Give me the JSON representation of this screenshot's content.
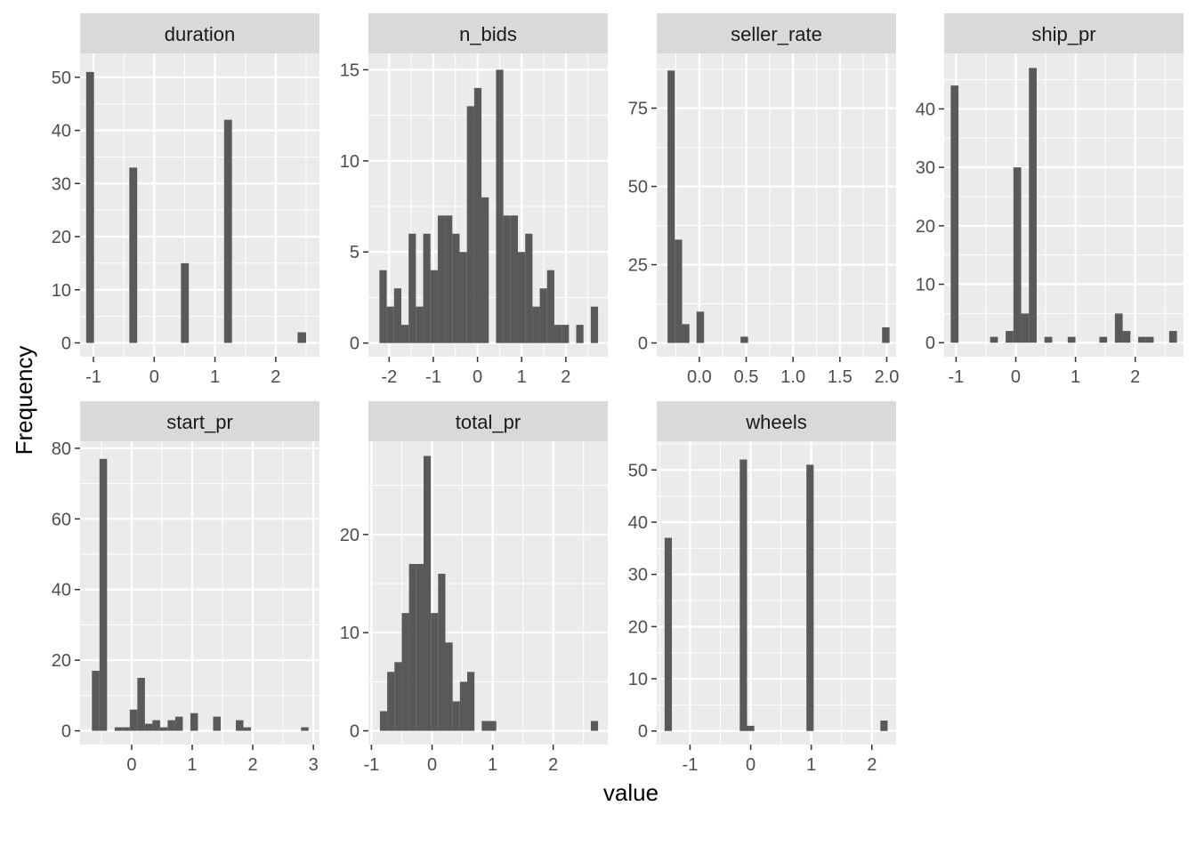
{
  "chart_data": {
    "type": "bar",
    "xlabel": "value",
    "ylabel": "Frequency",
    "title": "",
    "grid": true,
    "bar_color": "#595959",
    "panel_background": "#ebebeb",
    "strip_background": "#d9d9d9",
    "facets": [
      {
        "name": "duration",
        "xlim": [
          -1.22,
          2.72
        ],
        "ylim": [
          -2.6,
          54.5
        ],
        "xticks": [
          -1,
          0,
          1,
          2
        ],
        "xtick_labels": [
          "-1",
          "0",
          "1",
          "2"
        ],
        "yticks": [
          0,
          10,
          20,
          30,
          40,
          50
        ],
        "ytick_labels": [
          "0",
          "10",
          "20",
          "30",
          "40",
          "50"
        ],
        "bins": [
          {
            "x0": -1.12,
            "x1": -0.99,
            "count": 51
          },
          {
            "x0": -0.41,
            "x1": -0.28,
            "count": 33
          },
          {
            "x0": 0.44,
            "x1": 0.57,
            "count": 15
          },
          {
            "x0": 1.15,
            "x1": 1.28,
            "count": 42
          },
          {
            "x0": 2.36,
            "x1": 2.5,
            "count": 2
          }
        ]
      },
      {
        "name": "n_bids",
        "xlim": [
          -2.47,
          2.95
        ],
        "ylim": [
          -0.75,
          15.9
        ],
        "xticks": [
          -2,
          -1,
          0,
          1,
          2
        ],
        "xtick_labels": [
          "-2",
          "-1",
          "0",
          "1",
          "2"
        ],
        "yticks": [
          0,
          5,
          10,
          15
        ],
        "ytick_labels": [
          "0",
          "5",
          "10",
          "15"
        ],
        "bins": [
          {
            "x0": -2.22,
            "x1": -2.055,
            "count": 4
          },
          {
            "x0": -2.055,
            "x1": -1.89,
            "count": 2
          },
          {
            "x0": -1.89,
            "x1": -1.725,
            "count": 3
          },
          {
            "x0": -1.725,
            "x1": -1.56,
            "count": 1
          },
          {
            "x0": -1.56,
            "x1": -1.395,
            "count": 6
          },
          {
            "x0": -1.395,
            "x1": -1.23,
            "count": 2
          },
          {
            "x0": -1.23,
            "x1": -1.065,
            "count": 6
          },
          {
            "x0": -1.065,
            "x1": -0.9,
            "count": 4
          },
          {
            "x0": -0.9,
            "x1": -0.735,
            "count": 7
          },
          {
            "x0": -0.735,
            "x1": -0.57,
            "count": 7
          },
          {
            "x0": -0.57,
            "x1": -0.405,
            "count": 6
          },
          {
            "x0": -0.405,
            "x1": -0.24,
            "count": 5
          },
          {
            "x0": -0.24,
            "x1": -0.075,
            "count": 13
          },
          {
            "x0": -0.075,
            "x1": 0.09,
            "count": 14
          },
          {
            "x0": 0.09,
            "x1": 0.255,
            "count": 8
          },
          {
            "x0": 0.42,
            "x1": 0.585,
            "count": 15
          },
          {
            "x0": 0.585,
            "x1": 0.75,
            "count": 7
          },
          {
            "x0": 0.75,
            "x1": 0.915,
            "count": 7
          },
          {
            "x0": 0.915,
            "x1": 1.08,
            "count": 5
          },
          {
            "x0": 1.08,
            "x1": 1.245,
            "count": 6
          },
          {
            "x0": 1.245,
            "x1": 1.41,
            "count": 2
          },
          {
            "x0": 1.41,
            "x1": 1.575,
            "count": 3
          },
          {
            "x0": 1.575,
            "x1": 1.74,
            "count": 4
          },
          {
            "x0": 1.74,
            "x1": 1.905,
            "count": 1
          },
          {
            "x0": 1.905,
            "x1": 2.07,
            "count": 1
          },
          {
            "x0": 2.235,
            "x1": 2.4,
            "count": 1
          },
          {
            "x0": 2.565,
            "x1": 2.73,
            "count": 2
          }
        ]
      },
      {
        "name": "seller_rate",
        "xlim": [
          -0.455,
          2.1
        ],
        "ylim": [
          -4.4,
          92.5
        ],
        "xticks": [
          0.0,
          0.5,
          1.0,
          1.5,
          2.0
        ],
        "xtick_labels": [
          "0.0",
          "0.5",
          "1.0",
          "1.5",
          "2.0"
        ],
        "yticks": [
          0,
          25,
          50,
          75
        ],
        "ytick_labels": [
          "0",
          "25",
          "50",
          "75"
        ],
        "bins": [
          {
            "x0": -0.34,
            "x1": -0.262,
            "count": 87
          },
          {
            "x0": -0.262,
            "x1": -0.184,
            "count": 33
          },
          {
            "x0": -0.184,
            "x1": -0.106,
            "count": 6
          },
          {
            "x0": -0.03,
            "x1": 0.05,
            "count": 10
          },
          {
            "x0": 0.44,
            "x1": 0.52,
            "count": 2
          },
          {
            "x0": 1.95,
            "x1": 2.03,
            "count": 5
          }
        ]
      },
      {
        "name": "ship_pr",
        "xlim": [
          -1.2,
          2.81
        ],
        "ylim": [
          -2.4,
          49.5
        ],
        "xticks": [
          -1,
          0,
          1,
          2
        ],
        "xtick_labels": [
          "-1",
          "0",
          "1",
          "2"
        ],
        "yticks": [
          0,
          10,
          20,
          30,
          40
        ],
        "ytick_labels": [
          "0",
          "10",
          "20",
          "30",
          "40"
        ],
        "bins": [
          {
            "x0": -1.09,
            "x1": -0.96,
            "count": 44
          },
          {
            "x0": -0.43,
            "x1": -0.3,
            "count": 1
          },
          {
            "x0": -0.17,
            "x1": -0.04,
            "count": 2
          },
          {
            "x0": -0.04,
            "x1": 0.09,
            "count": 30
          },
          {
            "x0": 0.09,
            "x1": 0.22,
            "count": 5
          },
          {
            "x0": 0.22,
            "x1": 0.35,
            "count": 47
          },
          {
            "x0": 0.48,
            "x1": 0.61,
            "count": 1
          },
          {
            "x0": 0.87,
            "x1": 1.0,
            "count": 1
          },
          {
            "x0": 1.4,
            "x1": 1.53,
            "count": 1
          },
          {
            "x0": 1.66,
            "x1": 1.79,
            "count": 5
          },
          {
            "x0": 1.79,
            "x1": 1.92,
            "count": 2
          },
          {
            "x0": 2.05,
            "x1": 2.18,
            "count": 1
          },
          {
            "x0": 2.18,
            "x1": 2.31,
            "count": 1
          },
          {
            "x0": 2.57,
            "x1": 2.7,
            "count": 2
          }
        ]
      },
      {
        "name": "start_pr",
        "xlim": [
          -0.85,
          3.1
        ],
        "ylim": [
          -3.9,
          82
        ],
        "xticks": [
          0,
          1,
          2,
          3
        ],
        "xtick_labels": [
          "0",
          "1",
          "2",
          "3"
        ],
        "yticks": [
          0,
          20,
          40,
          60,
          80
        ],
        "ytick_labels": [
          "0",
          "20",
          "40",
          "60",
          "80"
        ],
        "bins": [
          {
            "x0": -0.655,
            "x1": -0.53,
            "count": 17
          },
          {
            "x0": -0.53,
            "x1": -0.405,
            "count": 77
          },
          {
            "x0": -0.28,
            "x1": -0.155,
            "count": 1
          },
          {
            "x0": -0.155,
            "x1": -0.03,
            "count": 1
          },
          {
            "x0": -0.03,
            "x1": 0.095,
            "count": 6
          },
          {
            "x0": 0.095,
            "x1": 0.22,
            "count": 15
          },
          {
            "x0": 0.22,
            "x1": 0.345,
            "count": 2
          },
          {
            "x0": 0.345,
            "x1": 0.47,
            "count": 3
          },
          {
            "x0": 0.47,
            "x1": 0.595,
            "count": 1
          },
          {
            "x0": 0.595,
            "x1": 0.72,
            "count": 3
          },
          {
            "x0": 0.72,
            "x1": 0.845,
            "count": 4
          },
          {
            "x0": 0.97,
            "x1": 1.095,
            "count": 5
          },
          {
            "x0": 1.345,
            "x1": 1.47,
            "count": 4
          },
          {
            "x0": 1.72,
            "x1": 1.845,
            "count": 3
          },
          {
            "x0": 1.845,
            "x1": 1.97,
            "count": 1
          },
          {
            "x0": 2.795,
            "x1": 2.92,
            "count": 1
          }
        ]
      },
      {
        "name": "total_pr",
        "xlim": [
          -1.05,
          2.9
        ],
        "ylim": [
          -1.4,
          29.5
        ],
        "xticks": [
          -1,
          0,
          1,
          2
        ],
        "xtick_labels": [
          "-1",
          "0",
          "1",
          "2"
        ],
        "yticks": [
          0,
          10,
          20
        ],
        "ytick_labels": [
          "0",
          "10",
          "20"
        ],
        "bins": [
          {
            "x0": -0.86,
            "x1": -0.74,
            "count": 2
          },
          {
            "x0": -0.74,
            "x1": -0.62,
            "count": 6
          },
          {
            "x0": -0.62,
            "x1": -0.5,
            "count": 7
          },
          {
            "x0": -0.5,
            "x1": -0.38,
            "count": 12
          },
          {
            "x0": -0.38,
            "x1": -0.26,
            "count": 17
          },
          {
            "x0": -0.26,
            "x1": -0.14,
            "count": 17
          },
          {
            "x0": -0.14,
            "x1": -0.02,
            "count": 28
          },
          {
            "x0": -0.02,
            "x1": 0.1,
            "count": 12
          },
          {
            "x0": 0.1,
            "x1": 0.22,
            "count": 16
          },
          {
            "x0": 0.22,
            "x1": 0.34,
            "count": 9
          },
          {
            "x0": 0.34,
            "x1": 0.46,
            "count": 3
          },
          {
            "x0": 0.46,
            "x1": 0.58,
            "count": 5
          },
          {
            "x0": 0.58,
            "x1": 0.7,
            "count": 6
          },
          {
            "x0": 0.82,
            "x1": 0.94,
            "count": 1
          },
          {
            "x0": 0.94,
            "x1": 1.06,
            "count": 1
          },
          {
            "x0": 2.62,
            "x1": 2.74,
            "count": 1
          }
        ]
      },
      {
        "name": "wheels",
        "xlim": [
          -1.55,
          2.4
        ],
        "ylim": [
          -2.6,
          55.5
        ],
        "xticks": [
          -1,
          0,
          1,
          2
        ],
        "xtick_labels": [
          "-1",
          "0",
          "1",
          "2"
        ],
        "yticks": [
          0,
          10,
          20,
          30,
          40,
          50
        ],
        "ytick_labels": [
          "0",
          "10",
          "20",
          "30",
          "40",
          "50"
        ],
        "bins": [
          {
            "x0": -1.42,
            "x1": -1.3,
            "count": 37
          },
          {
            "x0": -0.18,
            "x1": -0.06,
            "count": 52
          },
          {
            "x0": -0.06,
            "x1": 0.06,
            "count": 1
          },
          {
            "x0": 0.92,
            "x1": 1.04,
            "count": 51
          },
          {
            "x0": 2.14,
            "x1": 2.26,
            "count": 2
          }
        ]
      }
    ]
  }
}
